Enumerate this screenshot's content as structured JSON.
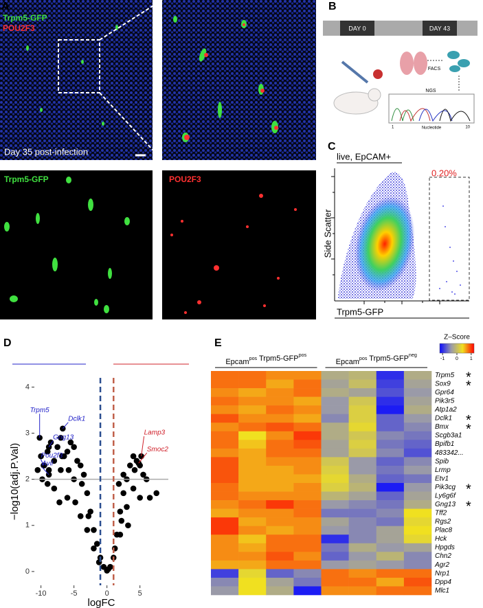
{
  "panel_labels": [
    "A",
    "B",
    "C",
    "D",
    "E"
  ],
  "panel_a": {
    "green": "Trpm5-GFP",
    "red": "POU2F3",
    "caption": "Day 35 post-infection",
    "bottom_left": "Trpm5-GFP",
    "bottom_right": "POU2F3"
  },
  "panel_b": {
    "timeline": [
      "DAY 0",
      "DAY 43"
    ],
    "facs": "FACS",
    "ngs": "NGS",
    "axis_start": "1",
    "axis_label": "Nucleotide",
    "axis_end": "10"
  },
  "panel_c": {
    "title": "live, EpCAM+",
    "gate": "0.20%",
    "y_label": "Side Scatter",
    "x_label": "Trpm5-GFP"
  },
  "chart_data": [
    {
      "type": "scatter",
      "x_label": "logFC",
      "y_label": "−log10(adj.P.Val)",
      "legend_left": [
        {
          "text": "Epcam",
          "sup": "pos"
        },
        {
          "text": "Trpm5-GFP",
          "sup": "pos"
        }
      ],
      "legend_right": [
        {
          "text": "Epcam",
          "sup": "pos"
        },
        {
          "text": "Trpm5-GFP",
          "sup": "neg"
        }
      ],
      "left_color": "#2020c8",
      "right_color": "#d0202a",
      "xlim": [
        -11,
        9.3
      ],
      "ylim": [
        -0.3,
        4.2
      ],
      "xticks": [
        -10,
        -5,
        0,
        5
      ],
      "yticks": [
        0,
        1,
        2,
        3,
        4
      ],
      "vlines": [
        -1,
        1
      ],
      "vline_colors": [
        "#2a4d8f",
        "#c0604a"
      ],
      "hline": 2,
      "x": [
        -10,
        -9.5,
        -9,
        -8.5,
        -8,
        -7.5,
        -7,
        -6.5,
        -6,
        -5.5,
        -5,
        -4.5,
        -4,
        -3.5,
        -3,
        -2.5,
        -2,
        -1.5,
        -1,
        -0.5,
        0,
        -8,
        -6,
        -4,
        -3,
        -5,
        -7,
        -9,
        -10.5,
        -2,
        0.5,
        1,
        1.5,
        2,
        2.5,
        3,
        3.5,
        4,
        4.5,
        5,
        5.5,
        6,
        3,
        4,
        2,
        5,
        2.5,
        1.8,
        7.5,
        -7.2,
        -5.8,
        -4.8,
        -3.8,
        -2.8,
        -6.8,
        -8.8,
        -9.8,
        -1.2,
        0.2,
        1.2,
        3.2,
        4.2,
        6.5,
        2.2
      ],
      "y": [
        2.5,
        2.3,
        2.6,
        2.8,
        2.4,
        2.7,
        2.9,
        2.5,
        2.6,
        2.8,
        2.7,
        2.4,
        2.3,
        2.1,
        1.7,
        1.3,
        0.9,
        0.6,
        0.3,
        0.1,
        0.02,
        1.8,
        1.6,
        1.2,
        0.9,
        2.0,
        2.2,
        1.9,
        2.2,
        0.5,
        0.1,
        0.3,
        0.8,
        1.3,
        1.7,
        2.0,
        2.3,
        2.5,
        2.4,
        2.3,
        2.1,
        2.0,
        1.4,
        1.8,
        0.8,
        1.6,
        2.1,
        1.9,
        1.7,
        1.5,
        2.2,
        1.5,
        1.9,
        1.2,
        2.5,
        2.2,
        2.0,
        0.2,
        0.05,
        0.5,
        1.0,
        2.2,
        1.6,
        1.1
      ],
      "highlights": [
        {
          "name": "Trpm5",
          "x": -10.2,
          "y": 2.9
        },
        {
          "name": "Gng13",
          "x": -8.8,
          "y": 2.7
        },
        {
          "name": "Dclk1",
          "x": -6.7,
          "y": 3.1
        },
        {
          "name": "Pou2f3",
          "x": -9.6,
          "y": 2.3
        },
        {
          "name": "Avil",
          "x": -8.8,
          "y": 2.1
        },
        {
          "name": "Lamp3",
          "x": 5.2,
          "y": 2.5
        },
        {
          "name": "Smoc2",
          "x": 4.8,
          "y": 2.35
        }
      ],
      "highlight_colors": [
        "#2020c8",
        "#2020c8",
        "#2020c8",
        "#2020c8",
        "#2020c8",
        "#d0202a",
        "#d0202a"
      ]
    },
    {
      "type": "heatmap",
      "colorbar_title": "Z–Score",
      "zlim": [
        -1.2,
        1.2
      ],
      "colorbar_ticks": [
        -1,
        0,
        1
      ],
      "colors": [
        "#0a0aff",
        "#9a9aa8",
        "#f0e020",
        "#ff0000"
      ],
      "groups": [
        [
          {
            "text": "Epcam",
            "sup": "pos"
          },
          {
            "text": " Trpm5-GFP",
            "sup": "pos"
          }
        ],
        [
          {
            "text": "Epcam",
            "sup": "pos"
          },
          {
            "text": " Trpm5-GFP",
            "sup": "neg"
          }
        ]
      ],
      "rows": [
        "Trpm5",
        "Sox9",
        "Gpr64",
        "Pik3r5",
        "Atp1a2",
        "Dclk1",
        "Bmx",
        "Scgb3a1",
        "Bpifb1",
        "483342...",
        "Spib",
        "Lrmp",
        "Etv1",
        "Pik3cg",
        "Ly6g6f",
        "Gng13",
        "Tff2",
        "Rgs2",
        "Plac8",
        "Hck",
        "Hpgds",
        "Chn2",
        "Agr2",
        "Nrp1",
        "Dpp4",
        "Mlc1"
      ],
      "stars": [
        "*",
        "*",
        null,
        null,
        null,
        "*",
        "*",
        null,
        null,
        null,
        null,
        null,
        null,
        "*",
        null,
        "*",
        null,
        null,
        null,
        null,
        null,
        null,
        null,
        null,
        null,
        null
      ],
      "values": [
        [
          0.8,
          0.8,
          0.7,
          0.7,
          -0.2,
          -0.1,
          -1.0,
          -0.2
        ],
        [
          0.8,
          0.8,
          0.6,
          0.8,
          -0.3,
          0,
          -0.9,
          -0.3
        ],
        [
          0.7,
          0.6,
          0.7,
          0.8,
          -0.2,
          -0.3,
          -0.8,
          -0.4
        ],
        [
          0.8,
          0.7,
          0.7,
          0.6,
          -0.4,
          0.1,
          -1.0,
          -0.3
        ],
        [
          0.7,
          0.6,
          0.8,
          0.7,
          -0.4,
          0.2,
          -1.1,
          -0.2
        ],
        [
          0.9,
          0.7,
          0.7,
          0.6,
          -0.5,
          0.2,
          -0.7,
          -0.4
        ],
        [
          0.7,
          0.8,
          0.9,
          0.8,
          -0.2,
          0.3,
          -0.7,
          -0.5
        ],
        [
          0.8,
          0.4,
          0.7,
          1.0,
          -0.2,
          0.1,
          -0.5,
          -0.6
        ],
        [
          0.8,
          0.5,
          0.8,
          0.9,
          -0.3,
          0.2,
          -0.6,
          -0.7
        ],
        [
          0.7,
          0.6,
          0.8,
          0.8,
          -0.3,
          0.1,
          -0.5,
          -0.8
        ],
        [
          0.9,
          0.6,
          0.7,
          0.7,
          0.1,
          -0.4,
          -0.7,
          -0.5
        ],
        [
          0.9,
          0.6,
          0.6,
          0.7,
          0.2,
          -0.4,
          -0.6,
          -0.4
        ],
        [
          0.9,
          0.6,
          0.6,
          0.6,
          0.3,
          -0.2,
          -0.7,
          -0.6
        ],
        [
          0.8,
          0.6,
          0.6,
          0.7,
          0.2,
          -0.1,
          -1.1,
          -0.4
        ],
        [
          0.8,
          0.7,
          0.7,
          0.7,
          -0.1,
          -0.3,
          -0.7,
          -0.3
        ],
        [
          0.7,
          0.8,
          1.0,
          0.8,
          -0.4,
          -0.5,
          -0.6,
          -0.2
        ],
        [
          0.6,
          0.7,
          0.7,
          0.8,
          -0.6,
          -0.6,
          -0.5,
          0.4
        ],
        [
          1.0,
          0.6,
          0.7,
          0.7,
          -0.3,
          -0.5,
          -0.6,
          0.3
        ],
        [
          1.0,
          0.7,
          0.6,
          0.7,
          -0.4,
          -0.5,
          -0.3,
          0.4
        ],
        [
          0.7,
          0.5,
          0.8,
          0.8,
          -1.0,
          -0.5,
          -0.3,
          0.3
        ],
        [
          0.7,
          0.6,
          0.8,
          0.8,
          -0.6,
          -0.2,
          -0.4,
          -0.3
        ],
        [
          0.7,
          0.7,
          0.9,
          0.7,
          -0.7,
          -0.4,
          -0.1,
          -0.5
        ],
        [
          0.6,
          0.6,
          0.8,
          0.8,
          -0.4,
          -0.3,
          -0.4,
          -0.5
        ],
        [
          -0.9,
          0.3,
          -0.7,
          -0.5,
          0.8,
          0.7,
          0.8,
          0.8
        ],
        [
          -0.5,
          0.4,
          -0.3,
          -0.6,
          0.8,
          0.8,
          0.6,
          0.9
        ],
        [
          -0.4,
          0.4,
          -0.2,
          -1.1,
          0.7,
          0.7,
          0.8,
          0.8
        ]
      ]
    }
  ]
}
